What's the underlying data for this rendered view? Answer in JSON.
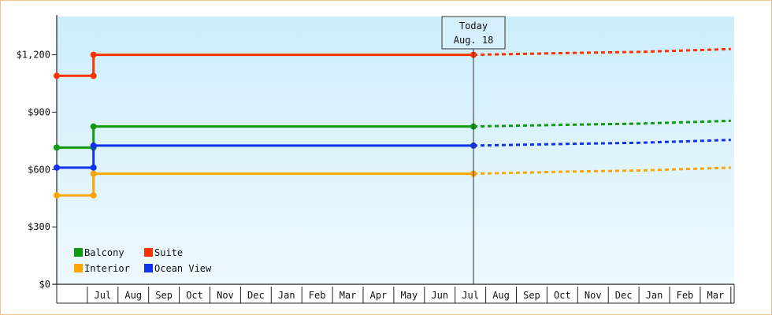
{
  "chart_data": {
    "type": "line",
    "title": "",
    "xlabel": "",
    "ylabel": "",
    "ylim": [
      0,
      1400
    ],
    "y_ticks": [
      {
        "value": 0,
        "label": "$0"
      },
      {
        "value": 300,
        "label": "$300"
      },
      {
        "value": 600,
        "label": "$600"
      },
      {
        "value": 900,
        "label": "$900"
      },
      {
        "value": 1200,
        "label": "$1,200"
      }
    ],
    "x_categories": [
      "",
      "Jul",
      "Aug",
      "Sep",
      "Oct",
      "Nov",
      "Dec",
      "Jan",
      "Feb",
      "Mar",
      "Apr",
      "May",
      "Jun",
      "Jul",
      "Aug",
      "Sep",
      "Oct",
      "Nov",
      "Dec",
      "Jan",
      "Feb",
      "Mar",
      ""
    ],
    "today_marker": {
      "line1": "Today",
      "line2": "Aug. 18",
      "month_index": 13.6
    },
    "grid": false,
    "legend_position": "bottom-left",
    "series": [
      {
        "name": "Suite",
        "color": "#ff3300",
        "actual": [
          [
            0,
            1090
          ],
          [
            1.2,
            1090
          ],
          [
            1.2,
            1200
          ],
          [
            13.6,
            1200
          ]
        ],
        "projected": [
          [
            13.6,
            1200
          ],
          [
            17,
            1210
          ],
          [
            19,
            1215
          ],
          [
            21,
            1225
          ],
          [
            22,
            1230
          ]
        ]
      },
      {
        "name": "Balcony",
        "color": "#119911",
        "actual": [
          [
            0,
            715
          ],
          [
            1.2,
            715
          ],
          [
            1.2,
            825
          ],
          [
            13.6,
            825
          ]
        ],
        "projected": [
          [
            13.6,
            825
          ],
          [
            17,
            835
          ],
          [
            19,
            840
          ],
          [
            21,
            850
          ],
          [
            22,
            855
          ]
        ]
      },
      {
        "name": "Ocean View",
        "color": "#1133ee",
        "actual": [
          [
            0,
            610
          ],
          [
            1.2,
            610
          ],
          [
            1.2,
            725
          ],
          [
            13.6,
            725
          ]
        ],
        "projected": [
          [
            13.6,
            725
          ],
          [
            17,
            735
          ],
          [
            19,
            740
          ],
          [
            21,
            750
          ],
          [
            22,
            755
          ]
        ]
      },
      {
        "name": "Interior",
        "color": "#ffa500",
        "actual": [
          [
            0,
            465
          ],
          [
            1.2,
            465
          ],
          [
            1.2,
            578
          ],
          [
            13.6,
            578
          ]
        ],
        "projected": [
          [
            13.6,
            578
          ],
          [
            17,
            590
          ],
          [
            19,
            595
          ],
          [
            21,
            605
          ],
          [
            22,
            610
          ]
        ]
      }
    ],
    "legend": [
      {
        "name": "Balcony",
        "color": "#119911"
      },
      {
        "name": "Suite",
        "color": "#ff3300"
      },
      {
        "name": "Interior",
        "color": "#ffa500"
      },
      {
        "name": "Ocean View",
        "color": "#1133ee"
      }
    ]
  }
}
